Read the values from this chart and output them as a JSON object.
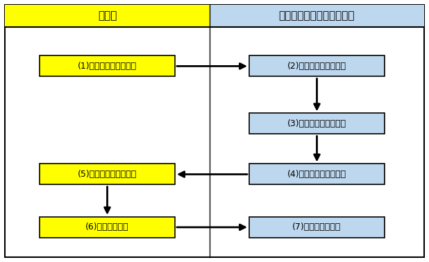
{
  "title_left": "申請者",
  "title_right": "飯山満土地区画整理事務所",
  "header_color_left": "#FFFF00",
  "header_color_right": "#BDD7EE",
  "box_color_yellow": "#FFFF00",
  "box_color_blue": "#BDD7EE",
  "bg_color": "#FFFFFF",
  "boxes": [
    {
      "label": "(1)仮換地証明願　提出",
      "color": "yellow",
      "col": "left",
      "row": 1
    },
    {
      "label": "(2)仮換地証明願　受理",
      "color": "blue",
      "col": "right",
      "row": 1
    },
    {
      "label": "(3)仮換地証明書　作成",
      "color": "blue",
      "col": "right",
      "row": 2
    },
    {
      "label": "(4)仮換地証明書　交付",
      "color": "blue",
      "col": "right",
      "row": 3
    },
    {
      "label": "(5)仮換地証明書　受領",
      "color": "yellow",
      "col": "left",
      "row": 3
    },
    {
      "label": "(6)受領書　提出",
      "color": "yellow",
      "col": "left",
      "row": 4
    },
    {
      "label": "(7)受領書　受取り",
      "color": "blue",
      "col": "right",
      "row": 4
    }
  ],
  "arrows": [
    {
      "from": 0,
      "to": 1,
      "direction": "right"
    },
    {
      "from": 1,
      "to": 2,
      "direction": "down"
    },
    {
      "from": 2,
      "to": 3,
      "direction": "down"
    },
    {
      "from": 3,
      "to": 4,
      "direction": "left"
    },
    {
      "from": 4,
      "to": 5,
      "direction": "down"
    },
    {
      "from": 5,
      "to": 6,
      "direction": "right"
    }
  ],
  "font_size_header": 11,
  "font_size_box": 9
}
